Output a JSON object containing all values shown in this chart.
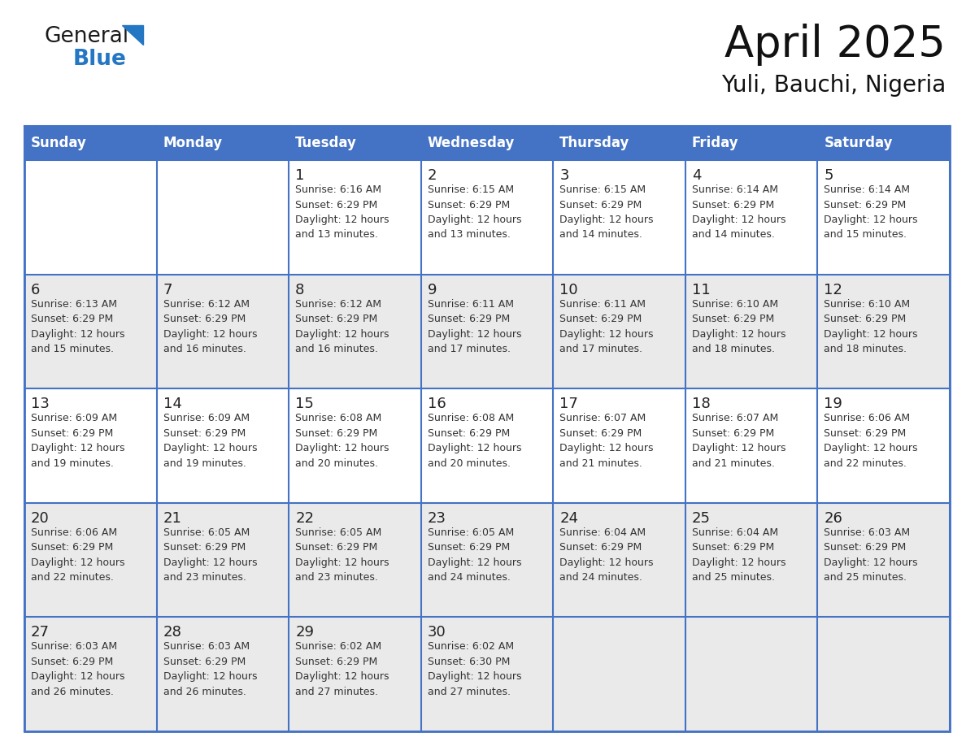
{
  "title": "April 2025",
  "subtitle": "Yuli, Bauchi, Nigeria",
  "header_color": "#4472C4",
  "header_text_color": "#FFFFFF",
  "days_of_week": [
    "Sunday",
    "Monday",
    "Tuesday",
    "Wednesday",
    "Thursday",
    "Friday",
    "Saturday"
  ],
  "bg_color": "#FFFFFF",
  "row_bg": [
    "#FFFFFF",
    "#EAEAEA",
    "#FFFFFF",
    "#EAEAEA",
    "#EAEAEA"
  ],
  "border_color": "#4472C4",
  "text_color": "#222222",
  "info_color": "#333333",
  "calendar_data": [
    [
      {
        "day": "",
        "info": ""
      },
      {
        "day": "",
        "info": ""
      },
      {
        "day": "1",
        "info": "Sunrise: 6:16 AM\nSunset: 6:29 PM\nDaylight: 12 hours\nand 13 minutes."
      },
      {
        "day": "2",
        "info": "Sunrise: 6:15 AM\nSunset: 6:29 PM\nDaylight: 12 hours\nand 13 minutes."
      },
      {
        "day": "3",
        "info": "Sunrise: 6:15 AM\nSunset: 6:29 PM\nDaylight: 12 hours\nand 14 minutes."
      },
      {
        "day": "4",
        "info": "Sunrise: 6:14 AM\nSunset: 6:29 PM\nDaylight: 12 hours\nand 14 minutes."
      },
      {
        "day": "5",
        "info": "Sunrise: 6:14 AM\nSunset: 6:29 PM\nDaylight: 12 hours\nand 15 minutes."
      }
    ],
    [
      {
        "day": "6",
        "info": "Sunrise: 6:13 AM\nSunset: 6:29 PM\nDaylight: 12 hours\nand 15 minutes."
      },
      {
        "day": "7",
        "info": "Sunrise: 6:12 AM\nSunset: 6:29 PM\nDaylight: 12 hours\nand 16 minutes."
      },
      {
        "day": "8",
        "info": "Sunrise: 6:12 AM\nSunset: 6:29 PM\nDaylight: 12 hours\nand 16 minutes."
      },
      {
        "day": "9",
        "info": "Sunrise: 6:11 AM\nSunset: 6:29 PM\nDaylight: 12 hours\nand 17 minutes."
      },
      {
        "day": "10",
        "info": "Sunrise: 6:11 AM\nSunset: 6:29 PM\nDaylight: 12 hours\nand 17 minutes."
      },
      {
        "day": "11",
        "info": "Sunrise: 6:10 AM\nSunset: 6:29 PM\nDaylight: 12 hours\nand 18 minutes."
      },
      {
        "day": "12",
        "info": "Sunrise: 6:10 AM\nSunset: 6:29 PM\nDaylight: 12 hours\nand 18 minutes."
      }
    ],
    [
      {
        "day": "13",
        "info": "Sunrise: 6:09 AM\nSunset: 6:29 PM\nDaylight: 12 hours\nand 19 minutes."
      },
      {
        "day": "14",
        "info": "Sunrise: 6:09 AM\nSunset: 6:29 PM\nDaylight: 12 hours\nand 19 minutes."
      },
      {
        "day": "15",
        "info": "Sunrise: 6:08 AM\nSunset: 6:29 PM\nDaylight: 12 hours\nand 20 minutes."
      },
      {
        "day": "16",
        "info": "Sunrise: 6:08 AM\nSunset: 6:29 PM\nDaylight: 12 hours\nand 20 minutes."
      },
      {
        "day": "17",
        "info": "Sunrise: 6:07 AM\nSunset: 6:29 PM\nDaylight: 12 hours\nand 21 minutes."
      },
      {
        "day": "18",
        "info": "Sunrise: 6:07 AM\nSunset: 6:29 PM\nDaylight: 12 hours\nand 21 minutes."
      },
      {
        "day": "19",
        "info": "Sunrise: 6:06 AM\nSunset: 6:29 PM\nDaylight: 12 hours\nand 22 minutes."
      }
    ],
    [
      {
        "day": "20",
        "info": "Sunrise: 6:06 AM\nSunset: 6:29 PM\nDaylight: 12 hours\nand 22 minutes."
      },
      {
        "day": "21",
        "info": "Sunrise: 6:05 AM\nSunset: 6:29 PM\nDaylight: 12 hours\nand 23 minutes."
      },
      {
        "day": "22",
        "info": "Sunrise: 6:05 AM\nSunset: 6:29 PM\nDaylight: 12 hours\nand 23 minutes."
      },
      {
        "day": "23",
        "info": "Sunrise: 6:05 AM\nSunset: 6:29 PM\nDaylight: 12 hours\nand 24 minutes."
      },
      {
        "day": "24",
        "info": "Sunrise: 6:04 AM\nSunset: 6:29 PM\nDaylight: 12 hours\nand 24 minutes."
      },
      {
        "day": "25",
        "info": "Sunrise: 6:04 AM\nSunset: 6:29 PM\nDaylight: 12 hours\nand 25 minutes."
      },
      {
        "day": "26",
        "info": "Sunrise: 6:03 AM\nSunset: 6:29 PM\nDaylight: 12 hours\nand 25 minutes."
      }
    ],
    [
      {
        "day": "27",
        "info": "Sunrise: 6:03 AM\nSunset: 6:29 PM\nDaylight: 12 hours\nand 26 minutes."
      },
      {
        "day": "28",
        "info": "Sunrise: 6:03 AM\nSunset: 6:29 PM\nDaylight: 12 hours\nand 26 minutes."
      },
      {
        "day": "29",
        "info": "Sunrise: 6:02 AM\nSunset: 6:29 PM\nDaylight: 12 hours\nand 27 minutes."
      },
      {
        "day": "30",
        "info": "Sunrise: 6:02 AM\nSunset: 6:30 PM\nDaylight: 12 hours\nand 27 minutes."
      },
      {
        "day": "",
        "info": ""
      },
      {
        "day": "",
        "info": ""
      },
      {
        "day": "",
        "info": ""
      }
    ]
  ],
  "logo_text_general": "General",
  "logo_text_blue": "Blue",
  "logo_color_general": "#1a1a1a",
  "logo_color_blue": "#2477C3",
  "logo_triangle_color": "#2477C3",
  "title_fontsize": 38,
  "subtitle_fontsize": 20,
  "header_fontsize": 12,
  "day_num_fontsize": 13,
  "info_fontsize": 9
}
